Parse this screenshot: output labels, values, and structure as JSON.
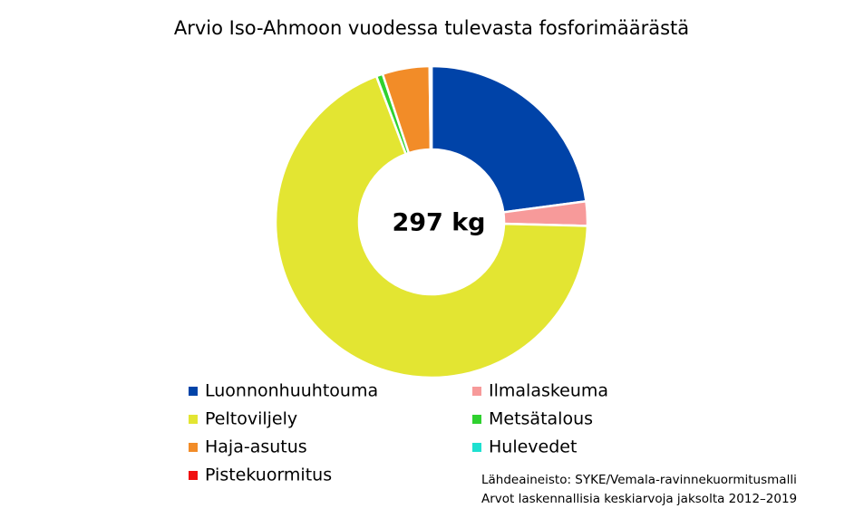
{
  "chart_data": {
    "type": "donut",
    "title": "Arvio Iso-Ahmoon vuodessa tulevasta fosforimäärästä",
    "center_label": "297 kg",
    "categories": [
      "Luonnonhuuhtouma",
      "Ilmalaskeuma",
      "Peltoviljely",
      "Metsätalous",
      "Haja-asutus",
      "Hulevedet",
      "Pistekuormitus"
    ],
    "values": [
      68,
      7.5,
      204.5,
      2,
      14.5,
      0.3,
      0.3
    ],
    "colors": [
      "#0043a8",
      "#f79a9a",
      "#e3e532",
      "#2fd12f",
      "#f28c28",
      "#1ee0d0",
      "#f01010"
    ],
    "notes": [
      "Lähdeaineisto: SYKE/Vemala-ravinnekuormitusmalli",
      "Arvot laskennallisia keskiarvoja jaksolta 2012–2019"
    ]
  }
}
